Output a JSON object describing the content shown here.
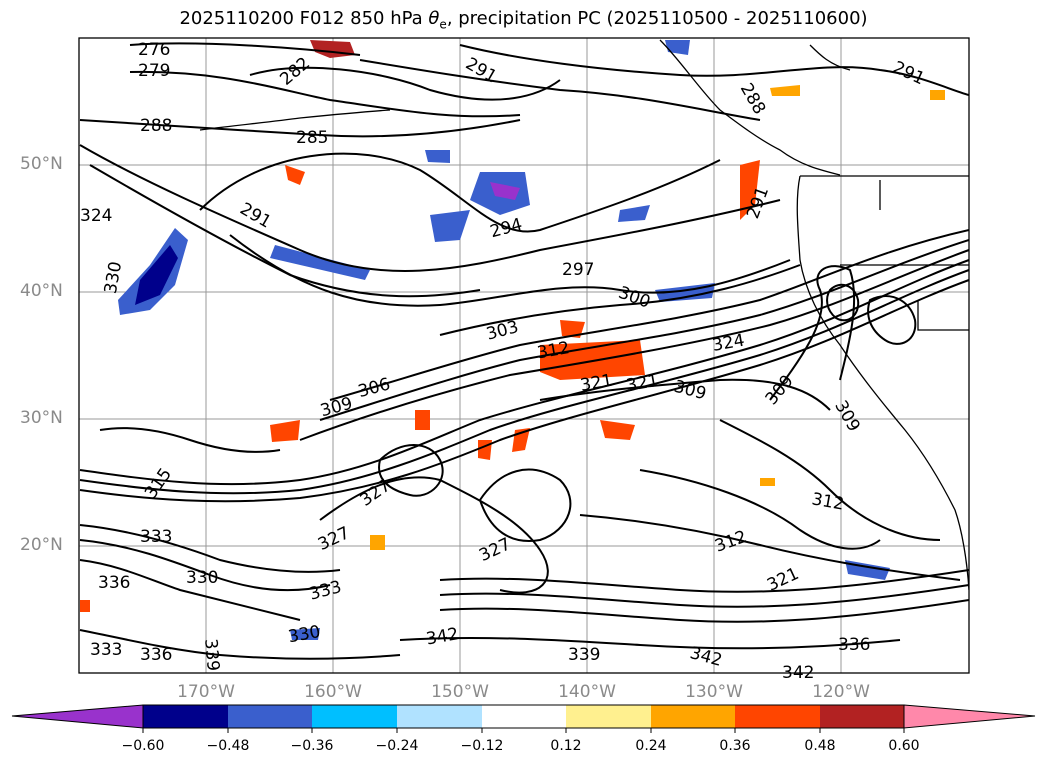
{
  "title": {
    "pre": "2025110200 F012 850 hPa ",
    "var_symbol": "θ",
    "var_sub": "e",
    "post": ", precipitation PC (2025110500 - 2025110600)"
  },
  "chart_data": {
    "type": "map",
    "lat_ticks": [
      "50°N",
      "40°N",
      "30°N",
      "20°N"
    ],
    "lon_ticks": [
      "170°W",
      "160°W",
      "150°W",
      "140°W",
      "130°W",
      "120°W"
    ],
    "colorbar": {
      "ticks": [
        "−0.60",
        "−0.48",
        "−0.36",
        "−0.24",
        "−0.12",
        "0.12",
        "0.24",
        "0.36",
        "0.48",
        "0.60"
      ],
      "colors": [
        "#9932cc",
        "#00008b",
        "#3a5fcd",
        "#00bfff",
        "#b0e2ff",
        "#ffffff",
        "#fff08f",
        "#ffa500",
        "#ff4500",
        "#b22222",
        "#ff88aa"
      ]
    },
    "contour_labels": [
      "276",
      "279",
      "282",
      "285",
      "288",
      "291",
      "294",
      "297",
      "300",
      "303",
      "306",
      "309",
      "312",
      "315",
      "318",
      "321",
      "324",
      "327",
      "330",
      "333",
      "336",
      "339",
      "342"
    ]
  }
}
